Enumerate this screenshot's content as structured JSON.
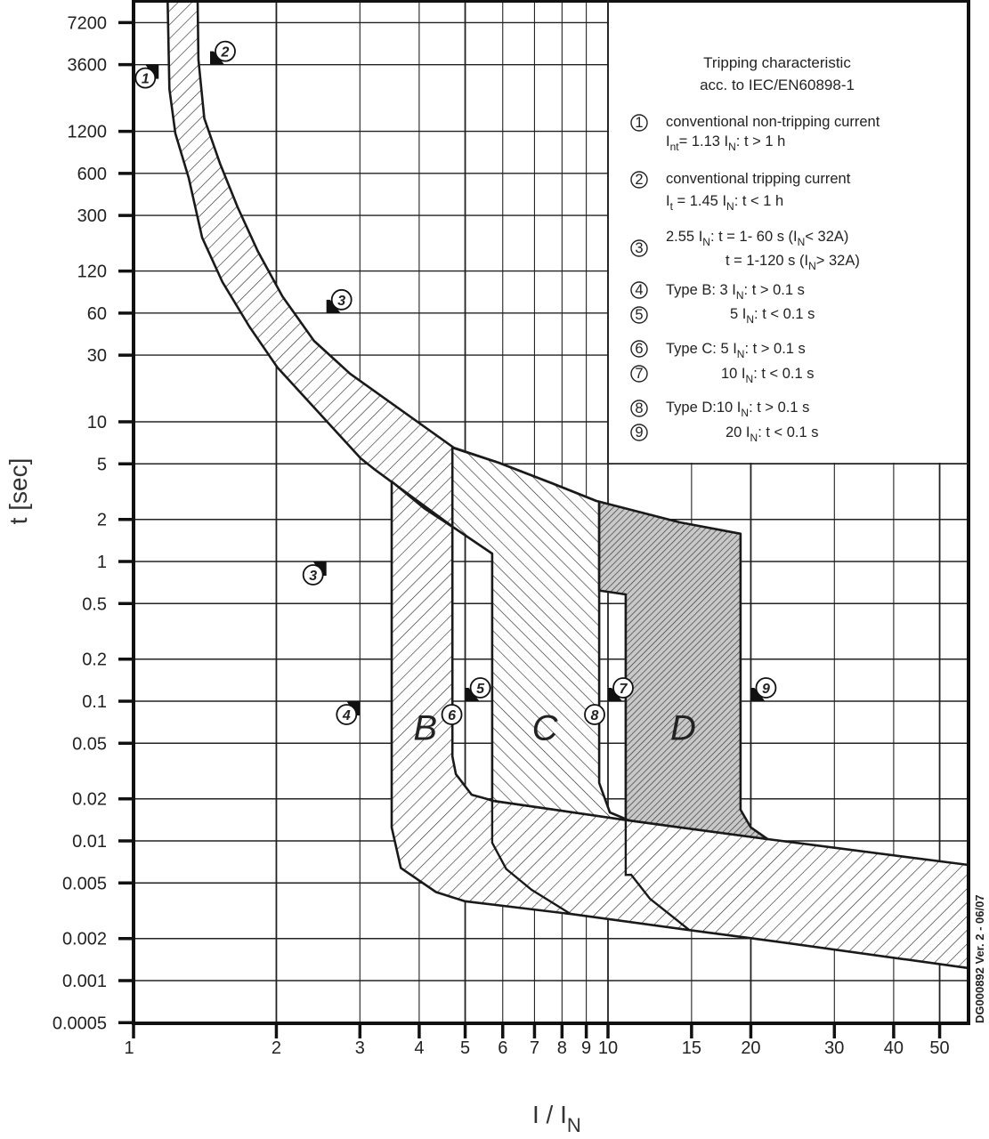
{
  "chart_data": {
    "type": "area",
    "title": "Tripping characteristic",
    "subtitle": "acc. to IEC/EN60898-1",
    "xlabel": "I / I",
    "xlabel_sub": "N",
    "ylabel": "t [sec]",
    "xscale": "log",
    "yscale": "log",
    "xlim": [
      1,
      57.5
    ],
    "ylim": [
      0.0005,
      10450
    ],
    "grid": true,
    "x_ticks": [
      "1",
      "2",
      "3",
      "4",
      "5",
      "6",
      "7",
      "8",
      "9",
      "10",
      "15",
      "20",
      "30",
      "40",
      "50"
    ],
    "y_ticks": [
      "7200",
      "3600",
      "1200",
      "600",
      "300",
      "120",
      "60",
      "30",
      "10",
      "5",
      "2",
      "1",
      "0.5",
      "0.2",
      "0.1",
      "0.05",
      "0.02",
      "0.01",
      "0.005",
      "0.002",
      "0.001",
      "0.0005"
    ],
    "legend_placement": "top-right",
    "regions": [
      {
        "name": "thermal-band",
        "hatch": "fwd",
        "points": [
          [
            1.18,
            10450
          ],
          [
            1.19,
            2410
          ],
          [
            1.225,
            1158
          ],
          [
            1.307,
            556
          ],
          [
            1.395,
            208
          ],
          [
            1.54,
            100
          ],
          [
            1.754,
            48
          ],
          [
            2.01,
            24.5
          ],
          [
            3.01,
            5.48
          ],
          [
            3.21,
            4.6
          ],
          [
            4.73,
            1.75
          ],
          [
            5.88,
            1.06
          ],
          [
            7.62,
            0.757
          ],
          [
            9.45,
            0.635
          ],
          [
            9.58,
            0.62
          ],
          [
            9.58,
            2.68
          ],
          [
            9.45,
            2.71
          ],
          [
            7.62,
            3.63
          ],
          [
            5.88,
            5.09
          ],
          [
            4.73,
            6.53
          ],
          [
            2.86,
            22.1
          ],
          [
            2.4,
            38
          ],
          [
            2.06,
            79
          ],
          [
            1.83,
            165
          ],
          [
            1.658,
            343
          ],
          [
            1.52,
            713
          ],
          [
            1.41,
            1486
          ],
          [
            1.37,
            3910
          ],
          [
            1.365,
            10450
          ]
        ]
      },
      {
        "name": "type-B-and-magnetic-band",
        "hatch": "fwd",
        "points": [
          [
            3.5,
            3.74
          ],
          [
            3.5,
            0.0125
          ],
          [
            3.66,
            0.0064
          ],
          [
            4.34,
            0.0043
          ],
          [
            4.99,
            0.0037
          ],
          [
            8.34,
            0.003
          ],
          [
            14.82,
            0.0023
          ],
          [
            21.7,
            0.00194
          ],
          [
            57.5,
            0.00123
          ],
          [
            57.5,
            0.00673
          ],
          [
            21.7,
            0.0103
          ],
          [
            11.09,
            0.014
          ],
          [
            5.7,
            0.0194
          ],
          [
            5.58,
            0.0199
          ],
          [
            5.16,
            0.0214
          ],
          [
            4.78,
            0.0301
          ],
          [
            4.7,
            0.0403
          ],
          [
            4.7,
            1.77
          ],
          [
            4.1,
            2.4
          ],
          [
            3.5,
            3.74
          ]
        ]
      },
      {
        "name": "type-C",
        "hatch": "back",
        "points": [
          [
            4.7,
            6.53
          ],
          [
            5.88,
            5.09
          ],
          [
            7.62,
            3.63
          ],
          [
            9.45,
            2.71
          ],
          [
            9.58,
            2.68
          ],
          [
            9.58,
            0.026
          ],
          [
            10.09,
            0.016
          ],
          [
            11.09,
            0.014
          ],
          [
            5.7,
            0.0194
          ],
          [
            5.7,
            1.14
          ],
          [
            4.73,
            1.75
          ],
          [
            4.7,
            1.77
          ]
        ]
      },
      {
        "name": "type-D",
        "hatch": "dense",
        "points": [
          [
            9.58,
            2.68
          ],
          [
            14.13,
            1.91
          ],
          [
            19.03,
            1.58
          ],
          [
            19.03,
            0.0167
          ],
          [
            20.0,
            0.0125
          ],
          [
            21.7,
            0.0103
          ],
          [
            11.09,
            0.014
          ],
          [
            10.9,
            0.0143
          ],
          [
            10.9,
            0.581
          ],
          [
            9.58,
            0.62
          ]
        ]
      }
    ],
    "curves": [
      {
        "name": "type-C-lower-curve",
        "points": [
          [
            5.7,
            0.0194
          ],
          [
            5.7,
            0.0097
          ],
          [
            6.1,
            0.0063
          ],
          [
            6.9,
            0.00447
          ],
          [
            8.34,
            0.003
          ]
        ]
      },
      {
        "name": "type-D-lower-curve",
        "points": [
          [
            10.9,
            0.0143
          ],
          [
            10.9,
            0.0057
          ],
          [
            11.19,
            0.00573
          ],
          [
            12.25,
            0.00386
          ],
          [
            14.82,
            0.00231
          ]
        ]
      }
    ],
    "region_labels": [
      {
        "text": "B",
        "x": 4.12,
        "y": 0.065
      },
      {
        "text": "C",
        "x": 7.36,
        "y": 0.065
      },
      {
        "text": "D",
        "x": 14.4,
        "y": 0.065
      }
    ],
    "markers": [
      {
        "num": "1",
        "x": 1.13,
        "y": 3600,
        "side": "left-below"
      },
      {
        "num": "2",
        "x": 1.45,
        "y": 3600,
        "side": "right-above"
      },
      {
        "num": "3",
        "x": 2.55,
        "y": 60,
        "side": "right-above"
      },
      {
        "num": "3",
        "x": 2.55,
        "y": 1,
        "side": "left-below"
      },
      {
        "num": "4",
        "x": 3,
        "y": 0.1,
        "side": "left-below"
      },
      {
        "num": "5",
        "x": 5,
        "y": 0.1,
        "side": "right-above"
      },
      {
        "num": "6",
        "x": 5,
        "y": 0.1,
        "side": "left-below-noflag"
      },
      {
        "num": "7",
        "x": 10,
        "y": 0.1,
        "side": "right-above"
      },
      {
        "num": "8",
        "x": 10,
        "y": 0.1,
        "side": "left-below-noflag"
      },
      {
        "num": "9",
        "x": 20,
        "y": 0.1,
        "side": "right-above"
      }
    ],
    "legend": [
      {
        "num": "1",
        "lines": [
          [
            {
              "t": "conventional non-tripping current"
            }
          ],
          [
            {
              "t": "I"
            },
            {
              "sub": "nt"
            },
            {
              "t": "= 1.13 I"
            },
            {
              "sub": "N"
            },
            {
              "t": ": t > 1 h"
            }
          ]
        ]
      },
      {
        "num": "2",
        "lines": [
          [
            {
              "t": "conventional tripping current"
            }
          ],
          [
            {
              "t": "I"
            },
            {
              "sub": "t"
            },
            {
              "t": " = 1.45 I"
            },
            {
              "sub": "N"
            },
            {
              "t": ": t < 1 h"
            }
          ]
        ]
      },
      {
        "num": "3",
        "lines": [
          [
            {
              "t": "2.55 I"
            },
            {
              "sub": "N"
            },
            {
              "t": ": t = 1- 60 s (I"
            },
            {
              "sub": "N"
            },
            {
              "t": "< 32A)"
            }
          ],
          [
            {
              "t": "t = 1-120 s (I"
            },
            {
              "sub": "N"
            },
            {
              "t": "> 32A)"
            }
          ]
        ]
      },
      {
        "num": "4",
        "lines": [
          [
            {
              "t": "Type B: 3 I"
            },
            {
              "sub": "N"
            },
            {
              "t": ": t > 0.1 s"
            }
          ]
        ]
      },
      {
        "num": "5",
        "lines": [
          [
            {
              "t": "5 I"
            },
            {
              "sub": "N"
            },
            {
              "t": ": t < 0.1 s"
            }
          ]
        ]
      },
      {
        "num": "6",
        "lines": [
          [
            {
              "t": "Type C: 5 I"
            },
            {
              "sub": "N"
            },
            {
              "t": ": t > 0.1 s"
            }
          ]
        ]
      },
      {
        "num": "7",
        "lines": [
          [
            {
              "t": "10 I"
            },
            {
              "sub": "N"
            },
            {
              "t": ": t < 0.1 s"
            }
          ]
        ]
      },
      {
        "num": "8",
        "lines": [
          [
            {
              "t": "Type D:10 I"
            },
            {
              "sub": "N"
            },
            {
              "t": ": t > 0.1 s"
            }
          ]
        ]
      },
      {
        "num": "9",
        "lines": [
          [
            {
              "t": "20 I"
            },
            {
              "sub": "N"
            },
            {
              "t": ": t < 0.1 s"
            }
          ]
        ]
      }
    ],
    "document_code": "DG000892 Ver. 2 - 06/07"
  }
}
